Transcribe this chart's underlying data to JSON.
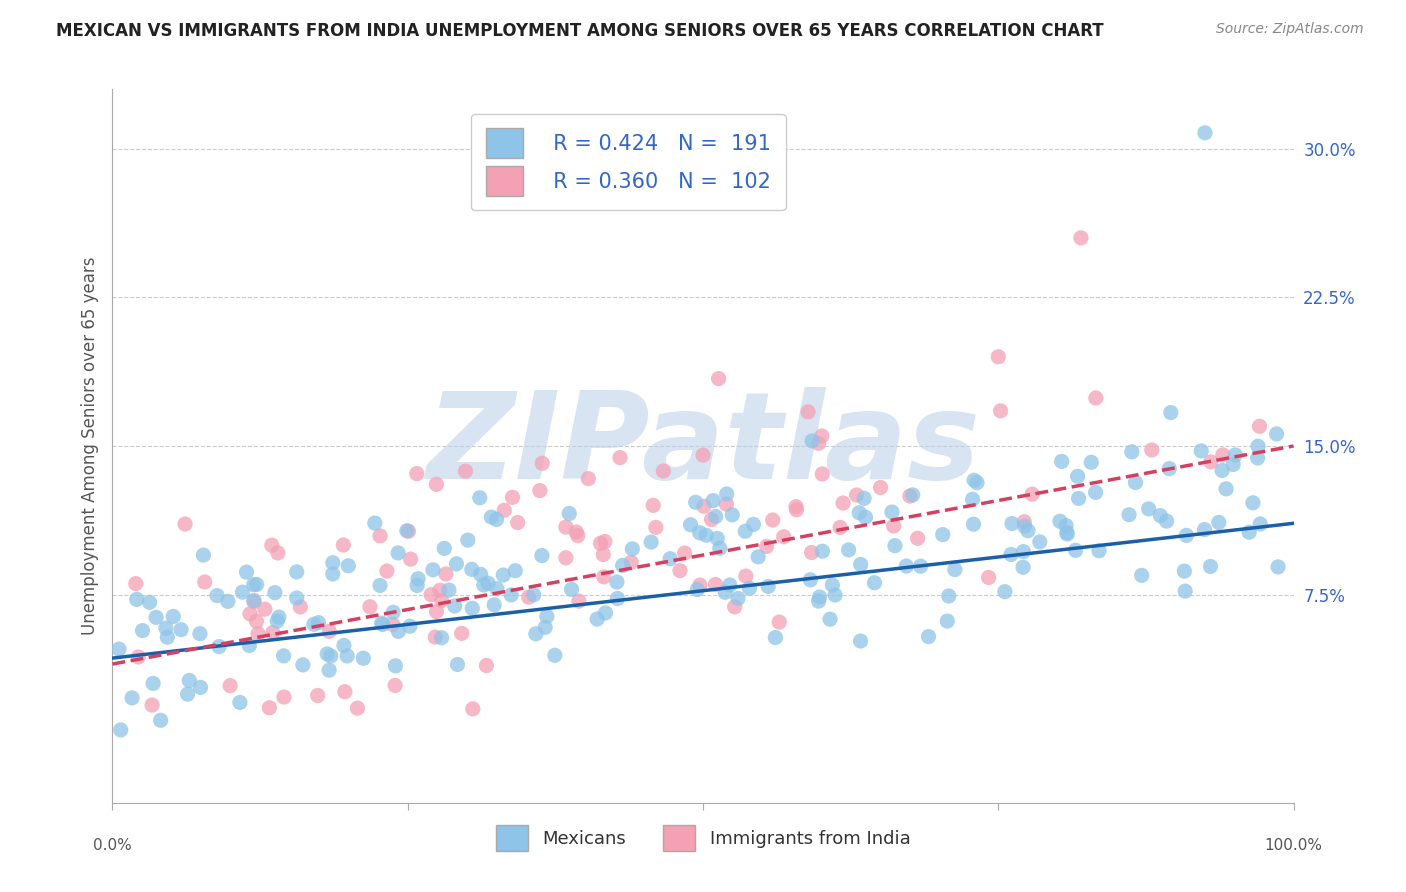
{
  "title": "MEXICAN VS IMMIGRANTS FROM INDIA UNEMPLOYMENT AMONG SENIORS OVER 65 YEARS CORRELATION CHART",
  "source": "Source: ZipAtlas.com",
  "ylabel": "Unemployment Among Seniors over 65 years",
  "legend_labels": [
    "Mexicans",
    "Immigrants from India"
  ],
  "R_mexican": 0.424,
  "N_mexican": 191,
  "R_india": 0.36,
  "N_india": 102,
  "mexican_color": "#8ec4e8",
  "india_color": "#f4a0b5",
  "mexican_line_color": "#1a5fa8",
  "india_line_color": "#d44060",
  "background_color": "#ffffff",
  "watermark": "ZIPatlas",
  "watermark_color_zip": "#b8cfe0",
  "watermark_color_atlas": "#c8a0a8",
  "seed": 42,
  "xlim": [
    0.0,
    1.0
  ],
  "ylim": [
    -0.03,
    0.33
  ],
  "yticks": [
    0.075,
    0.15,
    0.225,
    0.3
  ],
  "ytick_labels": [
    "7.5%",
    "15.0%",
    "22.5%",
    "30.0%"
  ]
}
